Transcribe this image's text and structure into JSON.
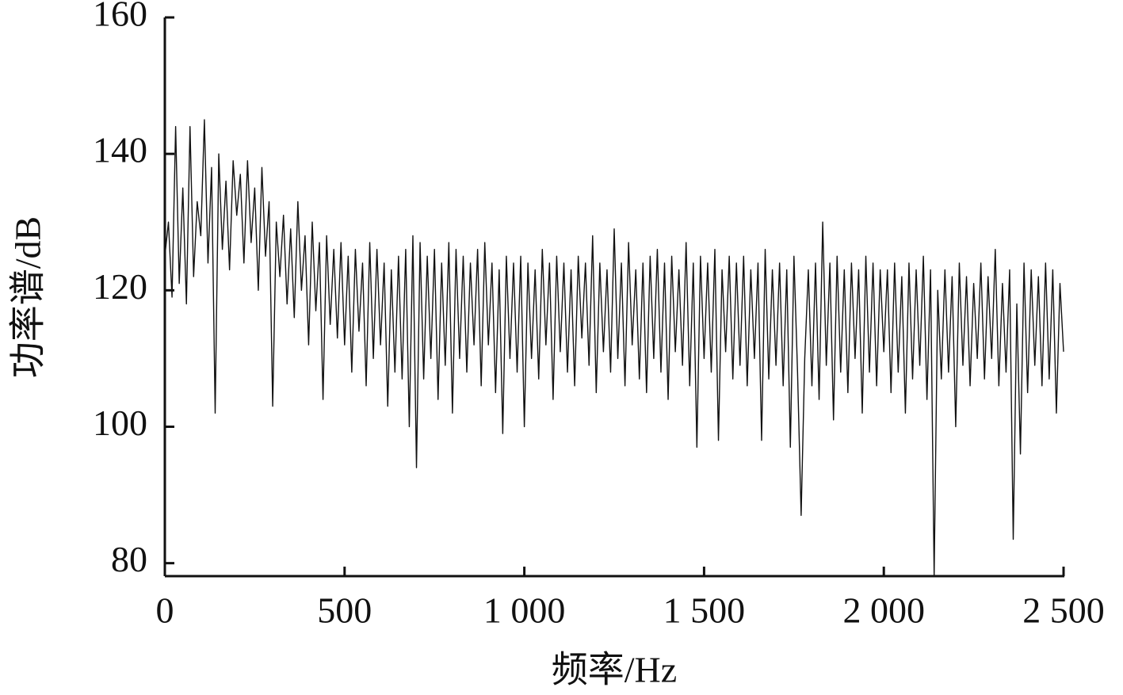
{
  "chart_data": {
    "type": "line",
    "xlabel": "频率/Hz",
    "ylabel": "功率谱/dB",
    "color": "#111111",
    "xlim": [
      0,
      2500
    ],
    "ylim": [
      78.1,
      160
    ],
    "xticks": [
      0,
      500,
      {
        "value": 1000,
        "label": "1 000"
      },
      {
        "value": 1500,
        "label": "1 500"
      },
      {
        "value": 2000,
        "label": "2 000"
      },
      {
        "value": 2500,
        "label": "2 500"
      }
    ],
    "yticks": [
      80,
      100,
      120,
      140,
      160
    ],
    "x": [
      0,
      10,
      20,
      30,
      40,
      50,
      60,
      70,
      80,
      90,
      100,
      110,
      120,
      130,
      140,
      150,
      160,
      170,
      180,
      190,
      200,
      210,
      220,
      230,
      240,
      250,
      260,
      270,
      280,
      290,
      300,
      310,
      320,
      330,
      340,
      350,
      360,
      370,
      380,
      390,
      400,
      410,
      420,
      430,
      440,
      450,
      460,
      470,
      480,
      490,
      500,
      510,
      520,
      530,
      540,
      550,
      560,
      570,
      580,
      590,
      600,
      610,
      620,
      630,
      640,
      650,
      660,
      670,
      680,
      690,
      700,
      710,
      720,
      730,
      740,
      750,
      760,
      770,
      780,
      790,
      800,
      810,
      820,
      830,
      840,
      850,
      860,
      870,
      880,
      890,
      900,
      910,
      920,
      930,
      940,
      950,
      960,
      970,
      980,
      990,
      1000,
      1010,
      1020,
      1030,
      1040,
      1050,
      1060,
      1070,
      1080,
      1090,
      1100,
      1110,
      1120,
      1130,
      1140,
      1150,
      1160,
      1170,
      1180,
      1190,
      1200,
      1210,
      1220,
      1230,
      1240,
      1250,
      1260,
      1270,
      1280,
      1290,
      1300,
      1310,
      1320,
      1330,
      1340,
      1350,
      1360,
      1370,
      1380,
      1390,
      1400,
      1410,
      1420,
      1430,
      1440,
      1450,
      1460,
      1470,
      1480,
      1490,
      1500,
      1510,
      1520,
      1530,
      1540,
      1550,
      1560,
      1570,
      1580,
      1590,
      1600,
      1610,
      1620,
      1630,
      1640,
      1650,
      1660,
      1670,
      1680,
      1690,
      1700,
      1710,
      1720,
      1730,
      1740,
      1750,
      1760,
      1770,
      1780,
      1790,
      1800,
      1810,
      1820,
      1830,
      1840,
      1850,
      1860,
      1870,
      1880,
      1890,
      1900,
      1910,
      1920,
      1930,
      1940,
      1950,
      1960,
      1970,
      1980,
      1990,
      2000,
      2010,
      2020,
      2030,
      2040,
      2050,
      2060,
      2070,
      2080,
      2090,
      2100,
      2110,
      2120,
      2130,
      2140,
      2150,
      2160,
      2170,
      2180,
      2190,
      2200,
      2210,
      2220,
      2230,
      2240,
      2250,
      2260,
      2270,
      2280,
      2290,
      2300,
      2310,
      2320,
      2330,
      2340,
      2350,
      2360,
      2370,
      2380,
      2390,
      2400,
      2410,
      2420,
      2430,
      2440,
      2450,
      2460,
      2470,
      2480,
      2490,
      2500
    ],
    "values": [
      125,
      130,
      119,
      144,
      121,
      135,
      118,
      144,
      122,
      133,
      128,
      145,
      124,
      138,
      102,
      140,
      126,
      136,
      123,
      139,
      131,
      137,
      124,
      139,
      127,
      135,
      120,
      138,
      125,
      133,
      103,
      130,
      122,
      131,
      118,
      129,
      116,
      133,
      120,
      128,
      112,
      130,
      117,
      127,
      104,
      128,
      115,
      126,
      113,
      127,
      112,
      125,
      108,
      126,
      114,
      124,
      106,
      127,
      110,
      126,
      112,
      124,
      103,
      123,
      108,
      125,
      107,
      126,
      100,
      128,
      94,
      127,
      107,
      125,
      110,
      126,
      104,
      124,
      109,
      127,
      102,
      126,
      110,
      125,
      108,
      124,
      112,
      126,
      106,
      127,
      112,
      124,
      105,
      123,
      99,
      125,
      110,
      124,
      108,
      125,
      100,
      124,
      110,
      123,
      107,
      126,
      112,
      124,
      104,
      125,
      111,
      124,
      108,
      123,
      106,
      125,
      113,
      124,
      109,
      128,
      105,
      124,
      111,
      123,
      108,
      129,
      110,
      124,
      106,
      127,
      112,
      123,
      107,
      124,
      105,
      125,
      110,
      126,
      108,
      124,
      104,
      125,
      111,
      123,
      109,
      127,
      106,
      124,
      97,
      125,
      110,
      124,
      108,
      126,
      98,
      123,
      111,
      125,
      107,
      124,
      109,
      125,
      106,
      123,
      110,
      124,
      98,
      126,
      107,
      123,
      109,
      124,
      106,
      123,
      97,
      125,
      108,
      87,
      110,
      123,
      106,
      124,
      104,
      130,
      109,
      124,
      101,
      125,
      108,
      123,
      105,
      124,
      110,
      123,
      102,
      125,
      108,
      124,
      106,
      123,
      111,
      123,
      105,
      124,
      108,
      122,
      102,
      124,
      107,
      123,
      109,
      125,
      104,
      123,
      78.1,
      120,
      107,
      123,
      108,
      122,
      100,
      124,
      109,
      122,
      106,
      121,
      110,
      124,
      107,
      122,
      110,
      126,
      106,
      121,
      108,
      123,
      83.5,
      118,
      96,
      124,
      105,
      123,
      109,
      122,
      106,
      124,
      107,
      123,
      102,
      121,
      111
    ]
  }
}
